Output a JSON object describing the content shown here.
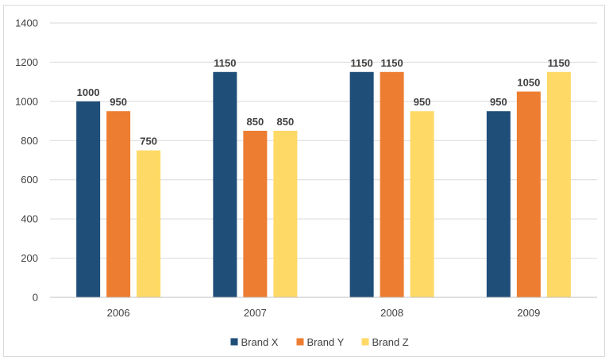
{
  "chart_data": {
    "type": "bar",
    "title": "",
    "xlabel": "",
    "ylabel": "",
    "categories": [
      "2006",
      "2007",
      "2008",
      "2009"
    ],
    "series": [
      {
        "name": "Brand X",
        "color": "#1f4e79",
        "values": [
          1000,
          1150,
          1150,
          950
        ]
      },
      {
        "name": "Brand Y",
        "color": "#ed7d31",
        "values": [
          950,
          850,
          1150,
          1050
        ]
      },
      {
        "name": "Brand Z",
        "color": "#ffd966",
        "values": [
          750,
          850,
          950,
          1150
        ]
      }
    ],
    "ylim": [
      0,
      1400
    ],
    "yticks": [
      "0",
      "200",
      "400",
      "600",
      "800",
      "1000",
      "1200",
      "1400"
    ],
    "grid": true,
    "legend_position": "bottom",
    "data_labels": true
  }
}
